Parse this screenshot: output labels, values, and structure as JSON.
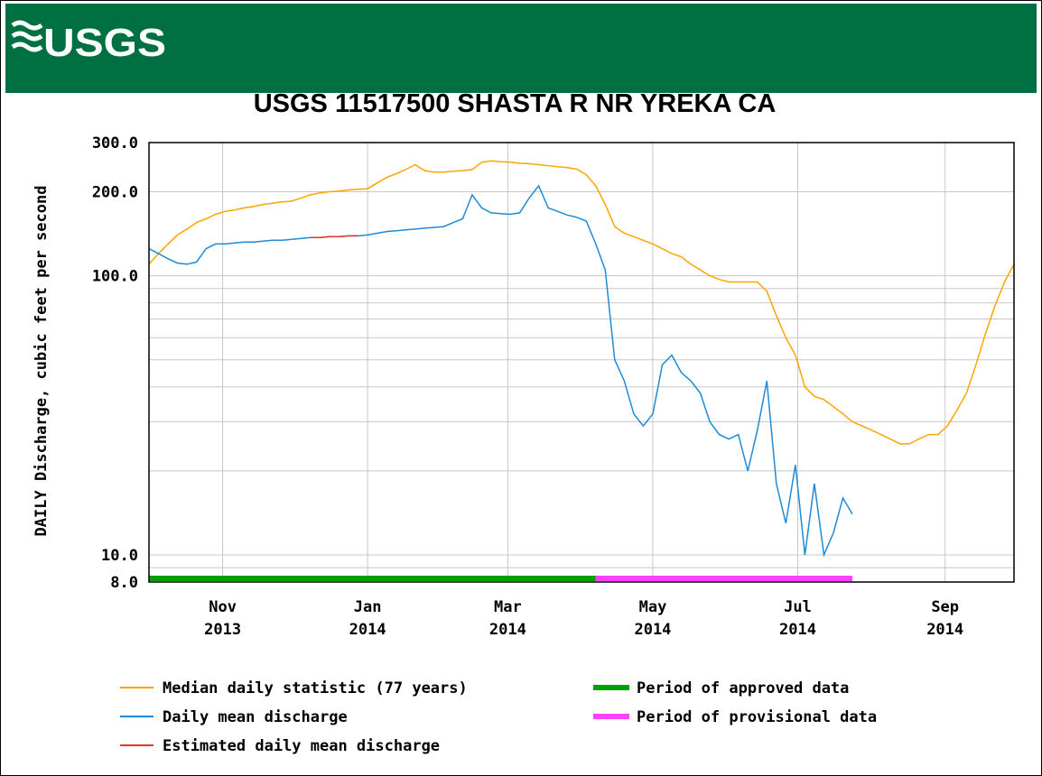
{
  "header": {
    "logo": "USGS"
  },
  "chart_data": {
    "type": "line",
    "title": "USGS 11517500 SHASTA R NR YREKA CA",
    "ylabel": "DAILY Discharge, cubic feet per second",
    "log_y": true,
    "ylim": [
      8,
      300
    ],
    "yticks": [
      {
        "value": 8,
        "label": "8.0"
      },
      {
        "value": 10,
        "label": "10.0"
      },
      {
        "value": 100,
        "label": "100.0"
      },
      {
        "value": 200,
        "label": "200.0"
      },
      {
        "value": 300,
        "label": "300.0"
      }
    ],
    "minor_grid": [
      9,
      20,
      30,
      40,
      50,
      60,
      70,
      80,
      90
    ],
    "xlim": [
      "2013-10",
      "2014-09"
    ],
    "xticks": [
      {
        "value": "2013-11",
        "label": "Nov",
        "year": "2013"
      },
      {
        "value": "2014-01",
        "label": "Jan",
        "year": "2014"
      },
      {
        "value": "2014-03",
        "label": "Mar",
        "year": "2014"
      },
      {
        "value": "2014-05",
        "label": "May",
        "year": "2014"
      },
      {
        "value": "2014-07",
        "label": "Jul",
        "year": "2014"
      },
      {
        "value": "2014-09",
        "label": "Sep",
        "year": "2014"
      }
    ],
    "grid": true,
    "series": [
      {
        "name": "Median daily statistic (77 years)",
        "color": "#ffa500",
        "values": [
          110,
          120,
          130,
          140,
          147,
          155,
          160,
          166,
          170,
          172,
          175,
          177,
          180,
          182,
          184,
          185,
          190,
          195,
          198,
          200,
          201,
          203,
          204,
          205,
          215,
          225,
          232,
          240,
          250,
          238,
          235,
          235,
          237,
          238,
          240,
          255,
          258,
          256,
          255,
          253,
          252,
          250,
          248,
          246,
          244,
          241,
          230,
          210,
          180,
          150,
          142,
          138,
          134,
          130,
          125,
          120,
          117,
          110,
          105,
          100,
          97,
          95,
          95,
          95,
          95,
          88,
          72,
          60,
          52,
          40,
          37,
          36,
          34,
          32,
          30,
          29,
          28,
          27,
          26,
          25,
          25,
          26,
          27,
          27,
          29,
          33,
          38,
          48,
          62,
          78,
          95,
          110
        ]
      },
      {
        "name": "Daily mean discharge",
        "color": "#1e8ad8",
        "values": [
          125,
          120,
          115,
          111,
          110,
          112,
          125,
          130,
          130,
          131,
          132,
          132,
          133,
          134,
          134,
          135,
          136,
          137,
          137,
          138,
          138,
          139,
          139,
          140,
          142,
          144,
          145,
          146,
          147,
          148,
          149,
          150,
          155,
          160,
          195,
          175,
          168,
          167,
          166,
          168,
          190,
          210,
          175,
          170,
          165,
          162,
          157,
          130,
          105,
          50,
          42,
          32,
          29,
          32,
          48,
          52,
          45,
          42,
          38,
          30,
          27,
          26,
          27,
          20,
          28,
          42,
          18,
          13,
          21,
          10,
          18,
          10,
          12,
          16,
          14
        ]
      },
      {
        "name": "Estimated daily mean discharge",
        "color": "#e8332a",
        "values": [
          null,
          null,
          null,
          null,
          null,
          null,
          null,
          null,
          null,
          null,
          null,
          null,
          null,
          null,
          null,
          null,
          null,
          137,
          137,
          138,
          138,
          139,
          139
        ]
      }
    ],
    "periods": [
      {
        "name": "Period of approved data",
        "color": "#00a000",
        "range": [
          0,
          47
        ]
      },
      {
        "name": "Period of provisional data",
        "color": "#ff40ff",
        "range": [
          47,
          74
        ]
      }
    ]
  }
}
